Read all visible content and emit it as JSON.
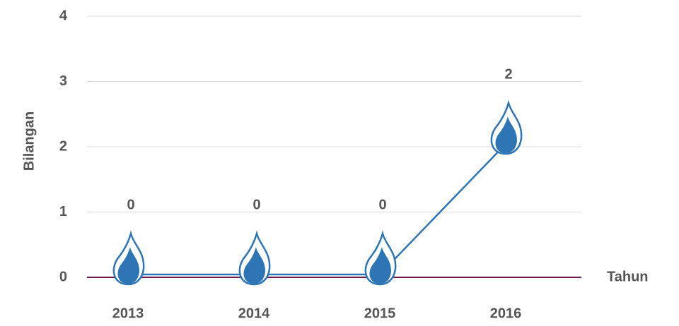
{
  "chart_data": {
    "type": "line",
    "categories": [
      "2013",
      "2014",
      "2015",
      "2016"
    ],
    "values": [
      0,
      0,
      0,
      2
    ],
    "color": "#2e75b6",
    "ylim": [
      0,
      4
    ],
    "yticks": [
      0,
      1,
      2,
      3,
      4
    ],
    "grid": true,
    "ylabel": "Bilangan",
    "xlabel": "Tahun",
    "baseline_color": "#6b1e4a"
  }
}
